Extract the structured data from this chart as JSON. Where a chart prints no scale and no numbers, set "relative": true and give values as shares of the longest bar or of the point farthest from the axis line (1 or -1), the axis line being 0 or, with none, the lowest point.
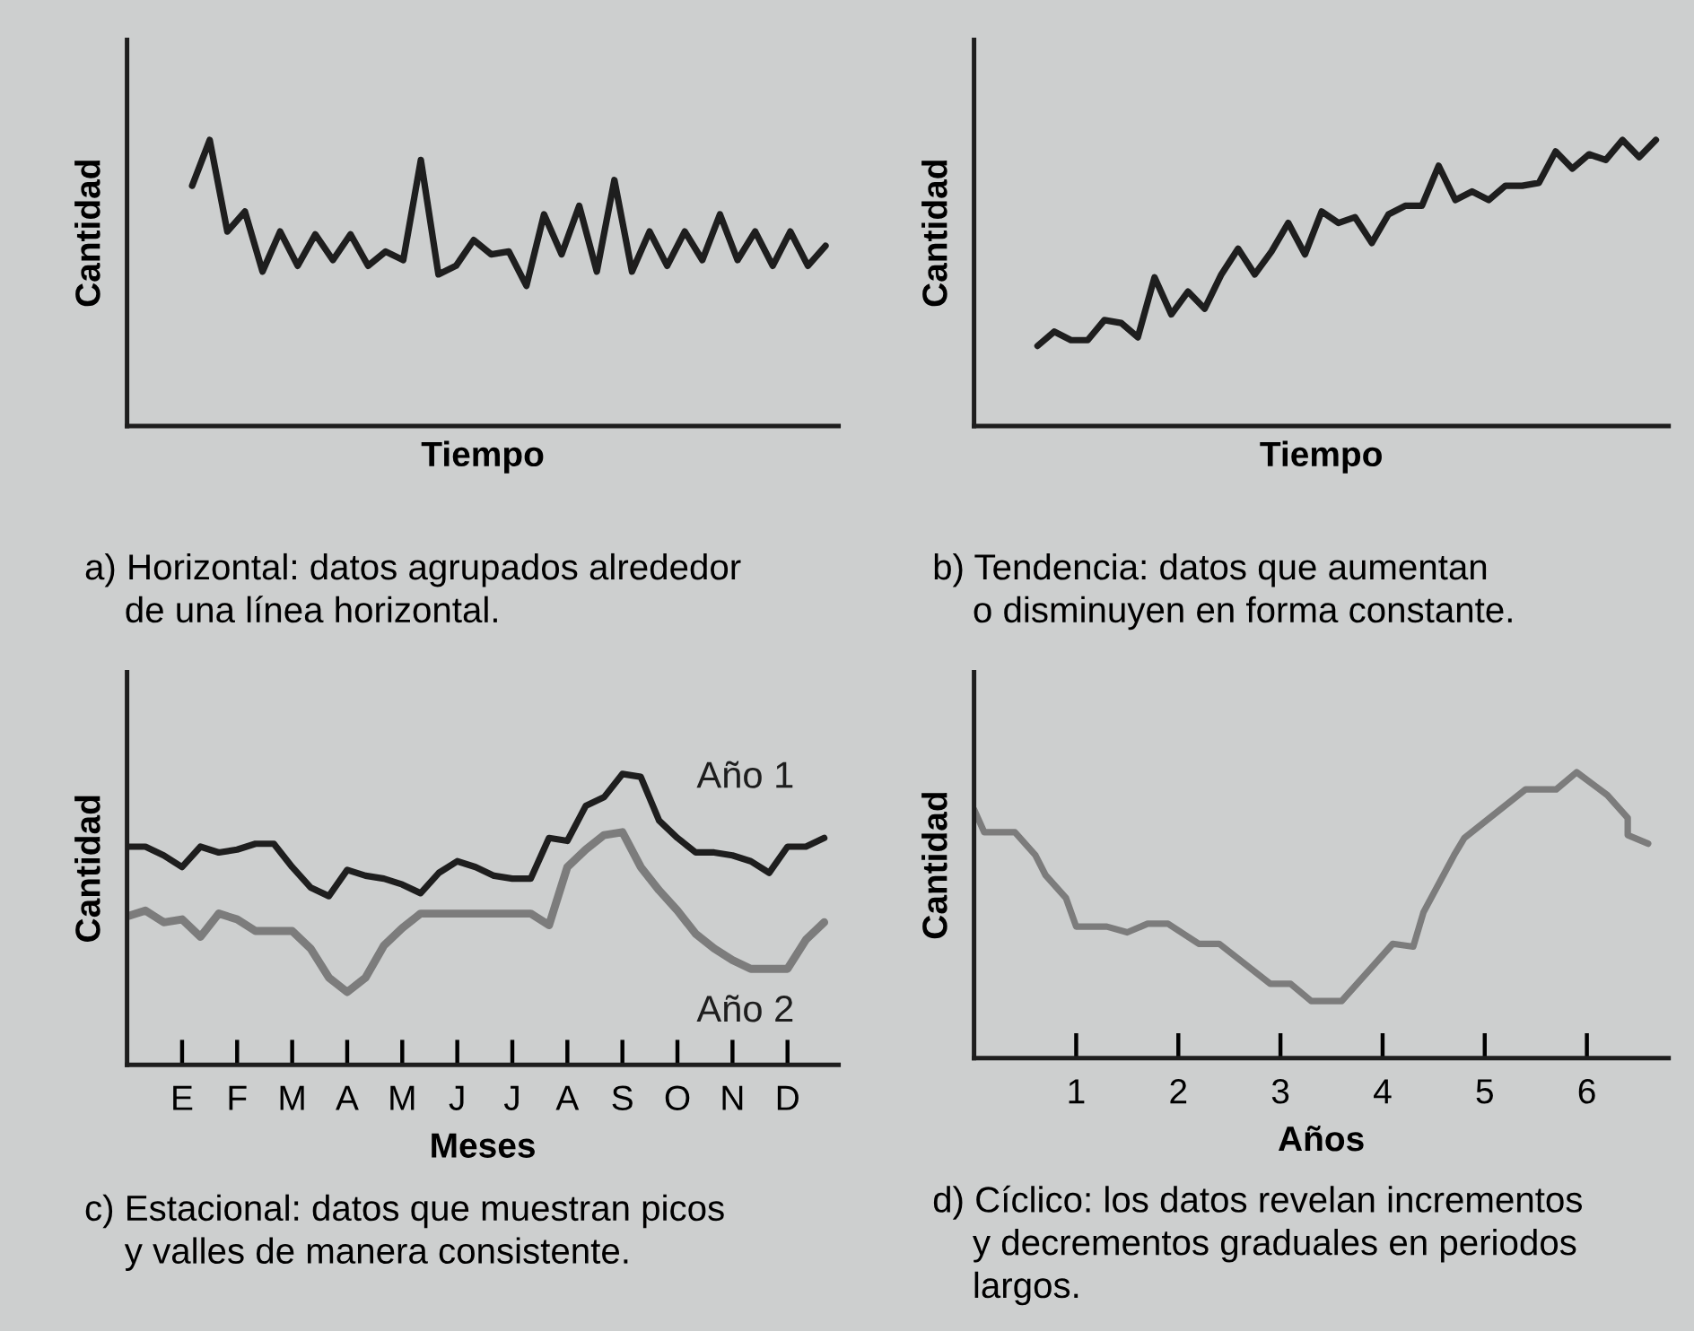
{
  "chart_data": [
    {
      "type": "line",
      "relative": true,
      "xlabel": "Tiempo",
      "ylabel": "Cantidad",
      "tick_labels": false,
      "annotations": [
        "a) Horizontal: datos agrupados alrededor\n    de una línea horizontal."
      ],
      "categories": [
        null,
        null,
        null,
        null,
        null,
        null,
        null,
        null,
        null,
        null,
        null,
        null,
        null,
        null,
        null,
        null,
        null,
        null,
        null,
        null,
        null,
        null,
        null,
        null,
        null,
        null,
        null,
        null,
        null,
        null,
        null,
        null,
        null,
        null,
        null,
        null,
        null
      ],
      "series": [
        {
          "color": "#1e1e1e",
          "values": [
            0.84,
            1.0,
            0.68,
            0.75,
            0.54,
            0.68,
            0.56,
            0.67,
            0.58,
            0.67,
            0.56,
            0.61,
            0.58,
            0.93,
            0.53,
            0.56,
            0.65,
            0.6,
            0.61,
            0.49,
            0.74,
            0.6,
            0.77,
            0.54,
            0.86,
            0.54,
            0.68,
            0.56,
            0.68,
            0.58,
            0.74,
            0.58,
            0.68,
            0.56,
            0.68,
            0.56,
            0.63
          ]
        }
      ]
    },
    {
      "type": "line",
      "relative": true,
      "xlabel": "Tiempo",
      "ylabel": "Cantidad",
      "tick_labels": false,
      "annotations": [
        "b) Tendencia: datos que aumentan\n    o disminuyen en forma constante."
      ],
      "categories": [
        null,
        null,
        null,
        null,
        null,
        null,
        null,
        null,
        null,
        null,
        null,
        null,
        null,
        null,
        null,
        null,
        null,
        null,
        null,
        null,
        null,
        null,
        null,
        null,
        null,
        null,
        null,
        null,
        null,
        null,
        null,
        null,
        null,
        null,
        null,
        null,
        null,
        null
      ],
      "series": [
        {
          "color": "#1e1e1e",
          "values": [
            0.28,
            0.33,
            0.3,
            0.3,
            0.37,
            0.36,
            0.31,
            0.52,
            0.39,
            0.47,
            0.41,
            0.53,
            0.62,
            0.53,
            0.61,
            0.71,
            0.6,
            0.75,
            0.71,
            0.73,
            0.64,
            0.74,
            0.77,
            0.77,
            0.91,
            0.79,
            0.82,
            0.79,
            0.84,
            0.84,
            0.85,
            0.96,
            0.9,
            0.95,
            0.93,
            1.0,
            0.94,
            1.0
          ]
        }
      ]
    },
    {
      "type": "line",
      "relative": true,
      "xlabel": "Meses",
      "ylabel": "Cantidad",
      "tick_labels": "x",
      "annotations": [
        "c) Estacional: datos que muestran picos\n    y valles de manera consistente."
      ],
      "categories": [
        null,
        null,
        null,
        "E",
        null,
        null,
        "F",
        null,
        null,
        "M",
        null,
        null,
        "A",
        null,
        null,
        "M",
        null,
        null,
        "J",
        null,
        null,
        "J",
        null,
        null,
        "A",
        null,
        null,
        "S",
        null,
        null,
        "O",
        null,
        null,
        "N",
        null,
        null,
        "D",
        null,
        null
      ],
      "series": [
        {
          "name": "Año 1",
          "color": "#1e1e1e",
          "values": [
            0.75,
            0.75,
            0.72,
            0.68,
            0.75,
            0.73,
            0.74,
            0.76,
            0.76,
            0.68,
            0.61,
            0.58,
            0.67,
            0.65,
            0.64,
            0.62,
            0.59,
            0.66,
            0.7,
            0.68,
            0.65,
            0.64,
            0.64,
            0.78,
            0.77,
            0.89,
            0.92,
            1.0,
            0.99,
            0.84,
            0.78,
            0.73,
            0.73,
            0.72,
            0.7,
            0.66,
            0.75,
            0.75,
            0.78
          ]
        },
        {
          "name": "Año 2",
          "color": "#7c7c7c",
          "values": [
            0.51,
            0.53,
            0.49,
            0.5,
            0.44,
            0.52,
            0.5,
            0.46,
            0.46,
            0.46,
            0.4,
            0.3,
            0.25,
            0.3,
            0.41,
            0.47,
            0.52,
            0.52,
            0.52,
            0.52,
            0.52,
            0.52,
            0.52,
            0.48,
            0.68,
            0.74,
            0.79,
            0.8,
            0.68,
            0.6,
            0.53,
            0.45,
            0.4,
            0.36,
            0.33,
            0.33,
            0.33,
            0.43,
            0.49
          ]
        }
      ]
    },
    {
      "type": "line",
      "relative": true,
      "xlabel": "Años",
      "ylabel": "Cantidad",
      "tick_labels": "x",
      "annotations": [
        "d) Cíclico: los datos revelan incrementos\n    y decrementos graduales en periodos\n    largos."
      ],
      "xlim": [
        0,
        6.8
      ],
      "xticks": [
        1,
        2,
        3,
        4,
        5,
        6
      ],
      "series": [
        {
          "color": "#7c7c7c",
          "x": [
            0.0,
            0.1,
            0.4,
            0.6,
            0.7,
            0.9,
            1.0,
            1.3,
            1.5,
            1.7,
            1.9,
            2.2,
            2.4,
            2.9,
            3.1,
            3.3,
            3.6,
            4.1,
            4.3,
            4.4,
            4.7,
            4.8,
            5.4,
            5.7,
            5.9,
            6.2,
            6.4,
            6.4,
            6.6
          ],
          "values": [
            0.87,
            0.79,
            0.79,
            0.71,
            0.64,
            0.56,
            0.46,
            0.46,
            0.44,
            0.47,
            0.47,
            0.4,
            0.4,
            0.26,
            0.26,
            0.2,
            0.2,
            0.4,
            0.39,
            0.51,
            0.71,
            0.77,
            0.94,
            0.94,
            1.0,
            0.92,
            0.84,
            0.78,
            0.75
          ]
        }
      ]
    }
  ]
}
